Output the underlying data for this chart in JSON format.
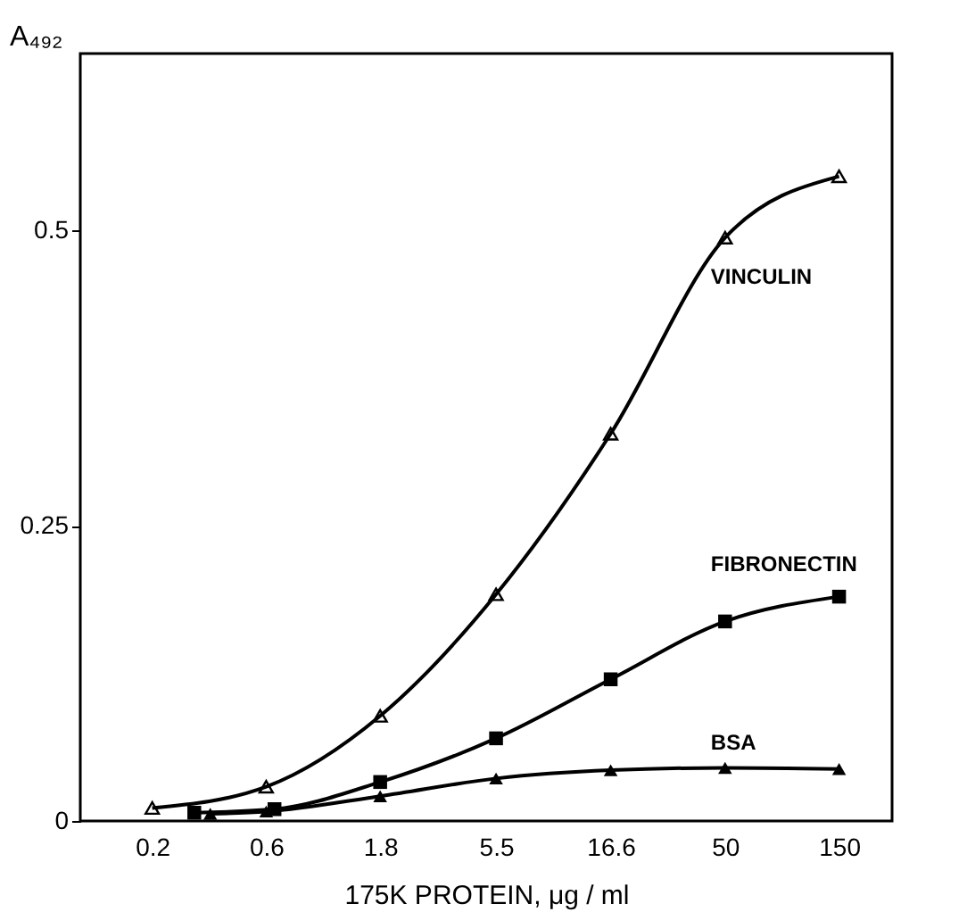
{
  "chart_data": {
    "type": "line",
    "xlabel": "175K PROTEIN, μg / ml",
    "ylabel": "A₄₉₂",
    "log": "x",
    "xlim": [
      0.1,
      250
    ],
    "xticks": [
      0.2,
      0.6,
      1.8,
      5.5,
      16.6,
      50,
      150
    ],
    "ylim": [
      0,
      0.65
    ],
    "yticks": [
      0,
      0.25,
      0.5
    ],
    "grid": false,
    "line_style": "solid",
    "series": [
      {
        "name": "VINCULIN",
        "color": "#000000",
        "marker": "triangle-open",
        "x": [
          0.2,
          0.6,
          1.8,
          5.5,
          16.6,
          50,
          150
        ],
        "values": [
          0.011,
          0.029,
          0.089,
          0.192,
          0.328,
          0.494,
          0.546
        ]
      },
      {
        "name": "FIBRONECTIN",
        "color": "#000000",
        "marker": "square",
        "x": [
          0.3,
          0.65,
          1.8,
          5.5,
          16.6,
          50,
          150
        ],
        "values": [
          0.007,
          0.01,
          0.033,
          0.07,
          0.12,
          0.169,
          0.19
        ]
      },
      {
        "name": "BSA",
        "color": "#000000",
        "marker": "triangle",
        "x": [
          0.35,
          0.6,
          1.8,
          5.5,
          16.6,
          50,
          150
        ],
        "values": [
          0.006,
          0.008,
          0.021,
          0.036,
          0.043,
          0.045,
          0.044
        ]
      }
    ]
  }
}
